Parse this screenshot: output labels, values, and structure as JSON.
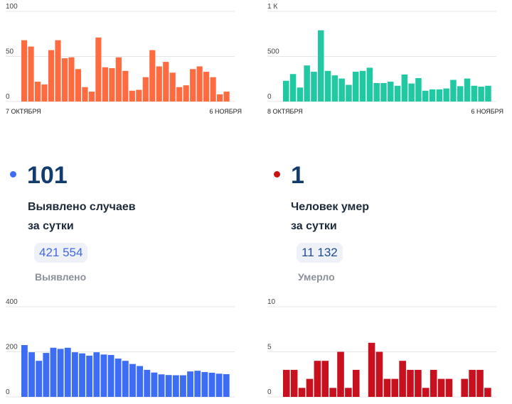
{
  "stats": {
    "cases": {
      "value": "101",
      "label_line1": "Выявлено случаев",
      "label_line2": "за сутки",
      "total": "421 554",
      "total_label": "Выявлено",
      "dot_color": "#3b6ef5",
      "total_color": "#4466e0"
    },
    "deaths": {
      "value": "1",
      "label_line1": "Человек умер",
      "label_line2": "за сутки",
      "total": "11 132",
      "total_label": "Умерло",
      "dot_color": "#cc1111",
      "total_color": "#1f4b8a"
    }
  },
  "chart_data": [
    {
      "type": "bar",
      "color": "#ff6b40",
      "ylim": [
        0,
        100
      ],
      "yticks": [
        "0",
        "50",
        "100"
      ],
      "ytick_values": [
        0,
        50,
        100
      ],
      "x_start": "7 ОКТЯБРЯ",
      "x_end": "6 НОЯБРЯ",
      "values": [
        68,
        61,
        22,
        19,
        57,
        68,
        48,
        49,
        36,
        16,
        11,
        71,
        38,
        37,
        49,
        34,
        12,
        13,
        27,
        57,
        39,
        44,
        32,
        16,
        18,
        36,
        39,
        33,
        27,
        8,
        11
      ]
    },
    {
      "type": "bar",
      "color": "#20c9a2",
      "ylim": [
        0,
        1000
      ],
      "yticks": [
        "0",
        "500",
        "1 К"
      ],
      "ytick_values": [
        0,
        500,
        1000
      ],
      "x_start": "8 ОКТЯБРЯ",
      "x_end": "6 НОЯБРЯ",
      "values": [
        230,
        305,
        155,
        400,
        330,
        790,
        340,
        290,
        255,
        185,
        330,
        340,
        375,
        205,
        205,
        220,
        175,
        300,
        200,
        260,
        120,
        135,
        135,
        145,
        240,
        170,
        255,
        175,
        165,
        175
      ]
    },
    {
      "type": "bar",
      "color": "#3d6cf5",
      "ylim": [
        0,
        400
      ],
      "yticks": [
        "0",
        "200",
        "400"
      ],
      "ytick_values": [
        0,
        200,
        400
      ],
      "values": [
        230,
        198,
        160,
        195,
        218,
        213,
        218,
        198,
        193,
        183,
        198,
        188,
        186,
        170,
        160,
        146,
        137,
        120,
        108,
        100,
        97,
        96,
        96,
        113,
        116,
        110,
        107,
        103,
        101
      ]
    },
    {
      "type": "bar",
      "color": "#c8101f",
      "ylim": [
        0,
        10
      ],
      "yticks": [
        "0",
        "5",
        "10"
      ],
      "ytick_values": [
        0,
        5,
        10
      ],
      "values": [
        3,
        3,
        1,
        2,
        4,
        4,
        1,
        5,
        1,
        3,
        0,
        6,
        5,
        2,
        2,
        4,
        3,
        3,
        1,
        3,
        2,
        2,
        0,
        2,
        3,
        3,
        1
      ]
    }
  ]
}
